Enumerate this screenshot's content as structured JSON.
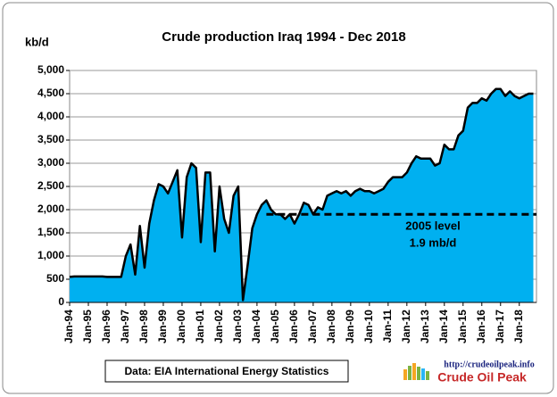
{
  "chart_data": {
    "type": "area",
    "title": "Crude  production Iraq 1994 - Dec 2018",
    "y_label": "kb/d",
    "source": "Data: EIA International Energy Statistics",
    "logo_url": "http://crudeoilpeak.info",
    "logo_name": "Crude Oil Peak",
    "color": "#00b0f0",
    "line_color": "#000000",
    "grid": true,
    "ylim": [
      0,
      5000
    ],
    "yticks": [
      0,
      500,
      {
        "value": 1000,
        "label": "1,000"
      },
      {
        "value": 1500,
        "label": "1,500"
      },
      {
        "value": 2000,
        "label": "2,000"
      },
      {
        "value": 2500,
        "label": "2,500"
      },
      {
        "value": 3000,
        "label": "3,000"
      },
      {
        "value": 3500,
        "label": "3,500"
      },
      {
        "value": 4000,
        "label": "4,000"
      },
      {
        "value": 4500,
        "label": "4,500"
      },
      {
        "value": 5000,
        "label": "5,000"
      }
    ],
    "categories": [
      "Jan-94",
      null,
      null,
      null,
      "Jan-95",
      null,
      null,
      null,
      "Jan-96",
      null,
      null,
      null,
      "Jan-97",
      null,
      null,
      null,
      "Jan-98",
      null,
      null,
      null,
      "Jan-99",
      null,
      null,
      null,
      "Jan-00",
      null,
      null,
      null,
      "Jan-01",
      null,
      null,
      null,
      "Jan-02",
      null,
      null,
      null,
      "Jan-03",
      null,
      null,
      null,
      "Jan-04",
      null,
      null,
      null,
      "Jan-05",
      null,
      null,
      null,
      "Jan-06",
      null,
      null,
      null,
      "Jan-07",
      null,
      null,
      null,
      "Jan-08",
      null,
      null,
      null,
      "Jan-09",
      null,
      null,
      null,
      "Jan-10",
      null,
      null,
      null,
      "Jan-11",
      null,
      null,
      null,
      "Jan-12",
      null,
      null,
      null,
      "Jan-13",
      null,
      null,
      null,
      "Jan-14",
      null,
      null,
      null,
      "Jan-15",
      null,
      null,
      null,
      "Jan-16",
      null,
      null,
      null,
      "Jan-17",
      null,
      null,
      null,
      "Jan-18",
      null,
      null,
      null
    ],
    "values": [
      550,
      560,
      560,
      560,
      560,
      560,
      560,
      560,
      550,
      550,
      550,
      550,
      1000,
      1250,
      600,
      1650,
      750,
      1700,
      2200,
      2550,
      2500,
      2350,
      2600,
      2850,
      1400,
      2700,
      3000,
      2900,
      1300,
      2800,
      2800,
      1100,
      2500,
      1800,
      1500,
      2300,
      2500,
      50,
      800,
      1600,
      1900,
      2100,
      2200,
      2000,
      1900,
      1900,
      1800,
      1900,
      1700,
      1900,
      2150,
      2100,
      1900,
      2050,
      2000,
      2300,
      2350,
      2400,
      2350,
      2400,
      2300,
      2400,
      2450,
      2400,
      2400,
      2350,
      2400,
      2450,
      2600,
      2700,
      2700,
      2700,
      2800,
      3000,
      3150,
      3100,
      3100,
      3100,
      2950,
      3000,
      3400,
      3300,
      3300,
      3600,
      3700,
      4200,
      4300,
      4300,
      4400,
      4350,
      4500,
      4600,
      4600,
      4450,
      4550,
      4450,
      4400,
      4450,
      4500,
      4500
    ],
    "reference_value": 1900,
    "annotations": [
      "2005 level",
      "1.9 mb/d"
    ]
  }
}
